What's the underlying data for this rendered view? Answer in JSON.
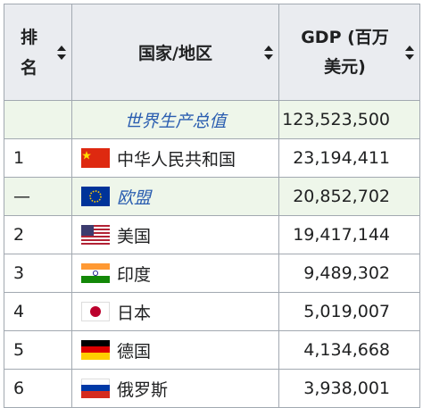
{
  "table": {
    "header": {
      "rank": "排名",
      "country": "国家/地区",
      "gdp": "GDP (百万美元)"
    },
    "rows": [
      {
        "country": "世界生产总值",
        "gdp": "123,523,500"
      },
      {
        "rank": "1",
        "country": "中华人民共和国",
        "gdp": "23,194,411"
      },
      {
        "rank": "—",
        "country": "欧盟",
        "gdp": "20,852,702"
      },
      {
        "rank": "2",
        "country": "美国",
        "gdp": "19,417,144"
      },
      {
        "rank": "3",
        "country": "印度",
        "gdp": "9,489,302"
      },
      {
        "rank": "4",
        "country": "日本",
        "gdp": "5,019,007"
      },
      {
        "rank": "5",
        "country": "德国",
        "gdp": "4,134,668"
      },
      {
        "rank": "6",
        "country": "俄罗斯",
        "gdp": "3,938,001"
      }
    ]
  }
}
